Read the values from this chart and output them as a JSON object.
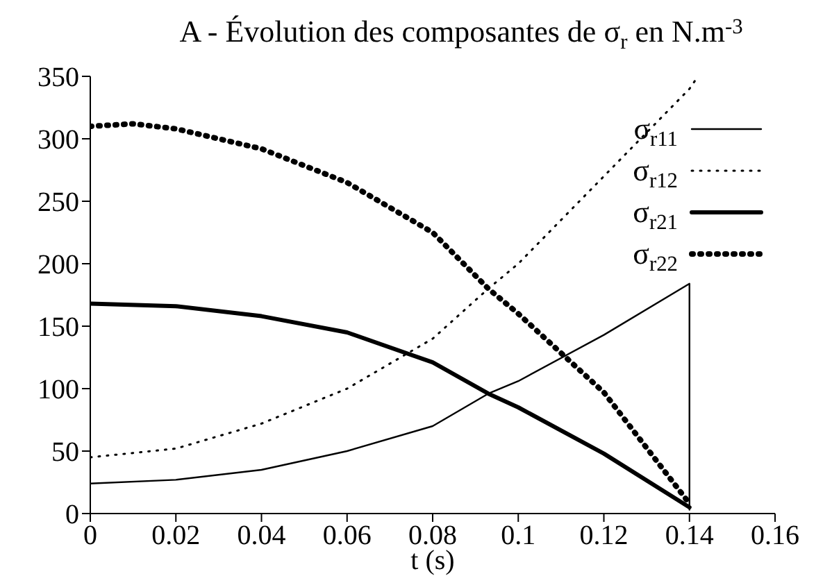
{
  "chart_data": {
    "type": "line",
    "title": "A - Évolution des composantes de σ$_{r}$ en N.m$^{-3}$",
    "xlabel": "t (s)",
    "xlim": [
      0,
      0.16
    ],
    "xticks": [
      0,
      0.02,
      0.04,
      0.06,
      0.08,
      0.1,
      0.12,
      0.14,
      0.16
    ],
    "ylim": [
      0,
      350
    ],
    "yticks": [
      0,
      50,
      100,
      150,
      200,
      250,
      300,
      350
    ],
    "grid": false,
    "legend": "top right",
    "marker": "none",
    "series": [
      {
        "name": "σ$_{r11}$",
        "color": "#000000",
        "line_style": "solid",
        "x": [
          0,
          0.02,
          0.04,
          0.06,
          0.08,
          0.093,
          0.1,
          0.12,
          0.14,
          0.14
        ],
        "values": [
          24,
          27,
          35,
          50,
          70,
          96,
          106,
          143,
          184,
          3
        ]
      },
      {
        "name": "σ$_{r12}$",
        "color": "#000000",
        "line_style": "dotted",
        "x": [
          0,
          0.02,
          0.04,
          0.06,
          0.08,
          0.093,
          0.1,
          0.12,
          0.14,
          0.142
        ],
        "values": [
          45,
          52,
          72,
          100,
          140,
          180,
          200,
          270,
          340,
          350
        ]
      },
      {
        "name": "σ$_{r21}$",
        "color": "#000000",
        "line_style": "solid",
        "x": [
          0,
          0.02,
          0.04,
          0.06,
          0.08,
          0.093,
          0.1,
          0.12,
          0.14
        ],
        "values": [
          168,
          166,
          158,
          145,
          121,
          96,
          85,
          48,
          5
        ]
      },
      {
        "name": "σ$_{r22}$",
        "color": "#000000",
        "line_style": "dotted",
        "x": [
          0,
          0.01,
          0.02,
          0.04,
          0.06,
          0.08,
          0.093,
          0.1,
          0.12,
          0.14
        ],
        "values": [
          310,
          312,
          308,
          292,
          265,
          225,
          180,
          160,
          97,
          8
        ]
      }
    ]
  }
}
